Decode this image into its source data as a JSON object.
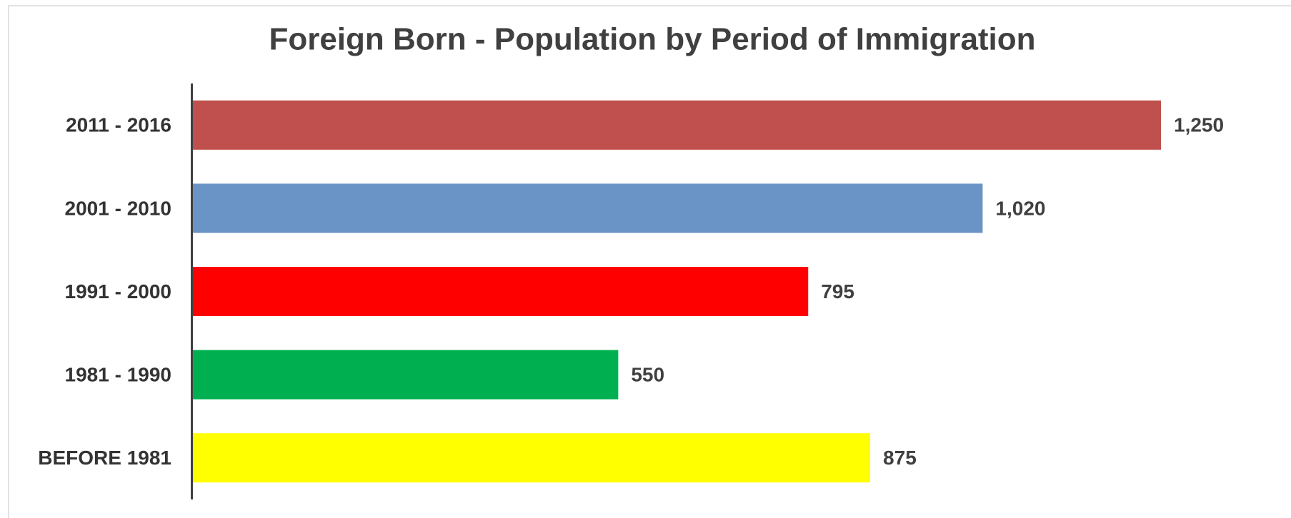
{
  "chart_data": {
    "type": "bar",
    "orientation": "horizontal",
    "title": "Foreign Born - Population by Period of Immigration",
    "categories": [
      "2011 - 2016",
      "2001 - 2010",
      "1991 - 2000",
      "1981 - 1990",
      "BEFORE 1981"
    ],
    "values": [
      1250,
      1020,
      795,
      550,
      875
    ],
    "value_labels": [
      "1,250",
      "1,020",
      "795",
      "550",
      "875"
    ],
    "colors": [
      "#c0504d",
      "#6a93c6",
      "#ff0000",
      "#00b050",
      "#ffff00"
    ]
  }
}
